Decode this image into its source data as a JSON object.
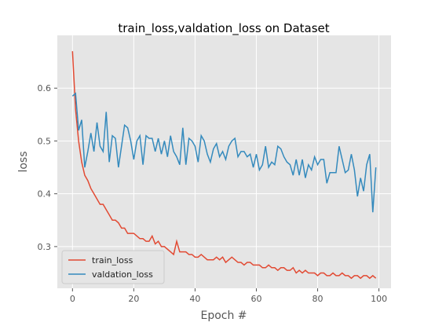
{
  "chart_data": {
    "type": "line",
    "title": "train_loss,valdation_loss on Dataset",
    "x_label": "Epoch #",
    "y_label": "loss",
    "x": [
      0,
      1,
      2,
      3,
      4,
      5,
      6,
      7,
      8,
      9,
      10,
      11,
      12,
      13,
      14,
      15,
      16,
      17,
      18,
      19,
      20,
      21,
      22,
      23,
      24,
      25,
      26,
      27,
      28,
      29,
      30,
      31,
      32,
      33,
      34,
      35,
      36,
      37,
      38,
      39,
      40,
      41,
      42,
      43,
      44,
      45,
      46,
      47,
      48,
      49,
      50,
      51,
      52,
      53,
      54,
      55,
      56,
      57,
      58,
      59,
      60,
      61,
      62,
      63,
      64,
      65,
      66,
      67,
      68,
      69,
      70,
      71,
      72,
      73,
      74,
      75,
      76,
      77,
      78,
      79,
      80,
      81,
      82,
      83,
      84,
      85,
      86,
      87,
      88,
      89,
      90,
      91,
      92,
      93,
      94,
      95,
      96,
      97,
      98,
      99
    ],
    "series": [
      {
        "name": "train_loss",
        "color": "#E24A33",
        "values": [
          0.67,
          0.56,
          0.5,
          0.46,
          0.435,
          0.425,
          0.41,
          0.4,
          0.39,
          0.38,
          0.38,
          0.37,
          0.36,
          0.35,
          0.35,
          0.345,
          0.335,
          0.335,
          0.325,
          0.325,
          0.325,
          0.32,
          0.315,
          0.315,
          0.31,
          0.31,
          0.32,
          0.305,
          0.31,
          0.3,
          0.3,
          0.295,
          0.29,
          0.285,
          0.31,
          0.29,
          0.29,
          0.29,
          0.285,
          0.285,
          0.28,
          0.28,
          0.285,
          0.28,
          0.275,
          0.275,
          0.275,
          0.28,
          0.275,
          0.28,
          0.27,
          0.275,
          0.28,
          0.275,
          0.27,
          0.27,
          0.265,
          0.27,
          0.27,
          0.265,
          0.265,
          0.265,
          0.26,
          0.26,
          0.265,
          0.26,
          0.26,
          0.255,
          0.26,
          0.26,
          0.255,
          0.255,
          0.26,
          0.25,
          0.255,
          0.25,
          0.255,
          0.25,
          0.25,
          0.25,
          0.245,
          0.25,
          0.25,
          0.245,
          0.245,
          0.25,
          0.245,
          0.245,
          0.25,
          0.245,
          0.245,
          0.24,
          0.245,
          0.245,
          0.24,
          0.245,
          0.245,
          0.24,
          0.245,
          0.24
        ]
      },
      {
        "name": "valdation_loss",
        "color": "#348ABD",
        "values": [
          0.585,
          0.59,
          0.52,
          0.54,
          0.45,
          0.48,
          0.515,
          0.48,
          0.535,
          0.49,
          0.48,
          0.555,
          0.46,
          0.51,
          0.505,
          0.45,
          0.49,
          0.53,
          0.525,
          0.5,
          0.465,
          0.5,
          0.51,
          0.455,
          0.51,
          0.505,
          0.505,
          0.48,
          0.505,
          0.475,
          0.5,
          0.47,
          0.51,
          0.48,
          0.47,
          0.455,
          0.525,
          0.455,
          0.505,
          0.5,
          0.49,
          0.46,
          0.51,
          0.5,
          0.475,
          0.46,
          0.485,
          0.495,
          0.47,
          0.48,
          0.465,
          0.49,
          0.5,
          0.505,
          0.47,
          0.48,
          0.48,
          0.47,
          0.475,
          0.45,
          0.475,
          0.445,
          0.455,
          0.49,
          0.45,
          0.46,
          0.455,
          0.49,
          0.485,
          0.47,
          0.46,
          0.455,
          0.435,
          0.465,
          0.435,
          0.465,
          0.43,
          0.455,
          0.445,
          0.47,
          0.455,
          0.465,
          0.465,
          0.42,
          0.44,
          0.44,
          0.44,
          0.49,
          0.465,
          0.44,
          0.445,
          0.475,
          0.445,
          0.395,
          0.43,
          0.405,
          0.455,
          0.475,
          0.365,
          0.45
        ]
      }
    ],
    "xlim": [
      -4.95,
      103.95
    ],
    "ylim": [
      0.221,
      0.7
    ],
    "xticks": [
      0,
      20,
      40,
      60,
      80,
      100
    ],
    "yticks": [
      0.3,
      0.4,
      0.5,
      0.6
    ],
    "grid": true,
    "legend": "lower left"
  }
}
